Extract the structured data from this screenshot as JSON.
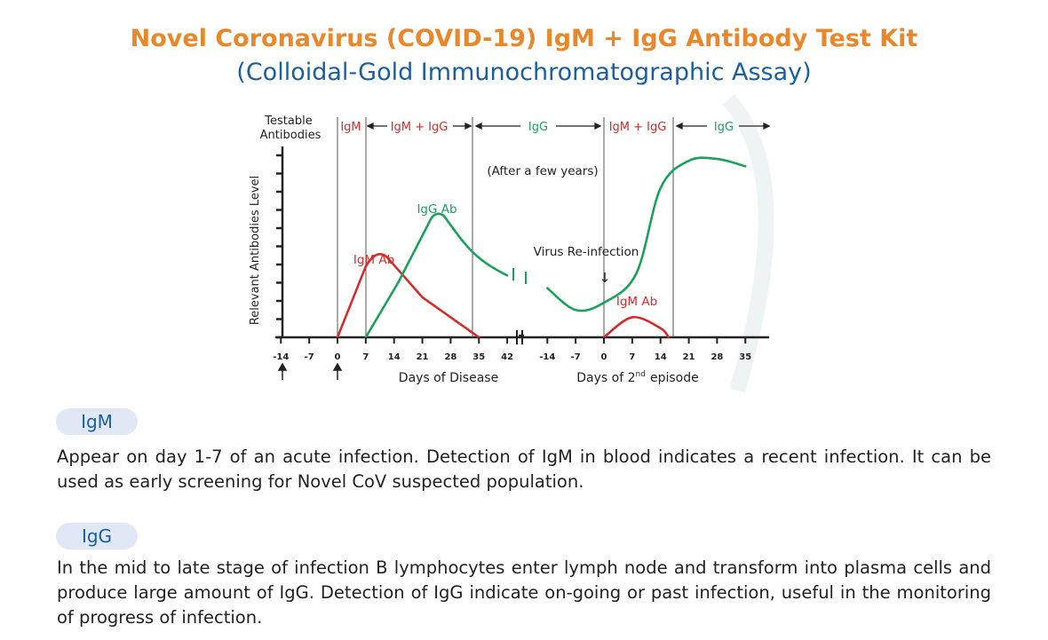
{
  "header": {
    "title": "Novel Coronavirus (COVID-19) IgM + IgG Antibody Test Kit",
    "subtitle": "(Colloidal-Gold Immunochromatographic Assay)"
  },
  "chart_data": {
    "type": "line",
    "ylabel": "Relevant Antibodies Level",
    "top_label": [
      "Testable",
      "Antibodies"
    ],
    "phases": [
      "IgM",
      "IgM + IgG",
      "IgG",
      "IgM + IgG",
      "IgG"
    ],
    "annotations": {
      "after_years": "(After a few years)",
      "reinfection": "Virus Re-infection",
      "igg_ab": "IgG Ab",
      "igm_ab_1": "IgM Ab",
      "igm_ab_2": "IgM Ab",
      "arrow": "↓"
    },
    "x_ticks_disease": [
      -14,
      -7,
      0,
      7,
      14,
      21,
      28,
      35,
      42
    ],
    "x_ticks_episode": [
      -14,
      -7,
      0,
      7,
      14,
      21,
      28,
      35
    ],
    "xlabel_disease": "Days of Disease",
    "xlabel_episode_pre": "Days of 2",
    "xlabel_episode_sup": "nd",
    "xlabel_episode_post": "episode",
    "ylim": [
      0,
      10
    ],
    "series": [
      {
        "name": "IgM (1st episode)",
        "color": "#d62b2b",
        "points": [
          [
            0,
            0
          ],
          [
            7,
            3.9
          ],
          [
            10,
            4.6
          ],
          [
            21,
            2.2
          ],
          [
            35,
            0
          ]
        ]
      },
      {
        "name": "IgG (1st episode)",
        "color": "#1aa25a",
        "points": [
          [
            7,
            0
          ],
          [
            15,
            3
          ],
          [
            24,
            6.8
          ],
          [
            30,
            5.9
          ],
          [
            42,
            3.4
          ]
        ]
      },
      {
        "name": "IgG (2nd episode)",
        "color": "#1aa25a",
        "points": [
          [
            -14,
            2.7
          ],
          [
            -7,
            1.5
          ],
          [
            0,
            1.9
          ],
          [
            8,
            3.5
          ],
          [
            14,
            8.2
          ],
          [
            21,
            9.7
          ],
          [
            28,
            9.8
          ],
          [
            35,
            9.4
          ]
        ]
      },
      {
        "name": "IgM (2nd episode)",
        "color": "#d62b2b",
        "points": [
          [
            0,
            0
          ],
          [
            7,
            1.1
          ],
          [
            14,
            0.5
          ],
          [
            16,
            0
          ]
        ]
      }
    ]
  },
  "sections": [
    {
      "tag": "IgM",
      "text": "Appear on day 1-7 of an acute infection. Detection of IgM in blood indicates a recent infection. It can be used as early screening for Novel CoV suspected population."
    },
    {
      "tag": "IgG",
      "text": "In the mid to late stage of infection B lymphocytes enter lymph node and transform into plasma cells and produce large amount of IgG. Detection of IgG indicate on-going or past infection, useful in the monitoring of progress of infection."
    }
  ]
}
